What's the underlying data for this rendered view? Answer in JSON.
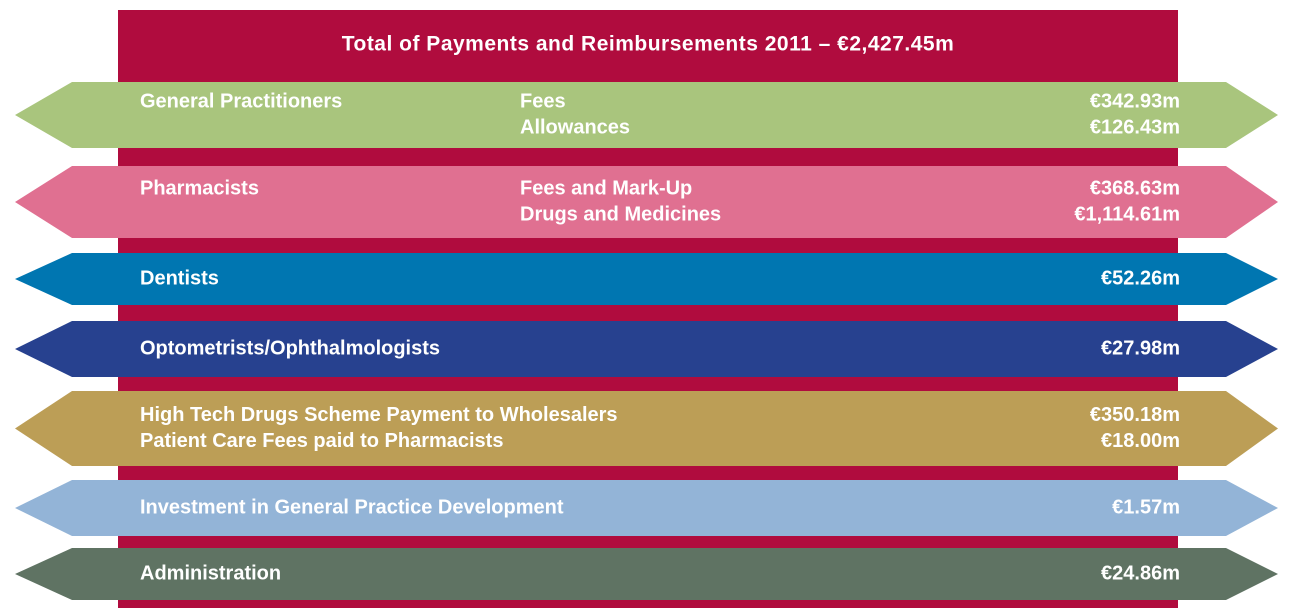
{
  "title": "Total of Payments and Reimbursements 2011 – €2,427.45m",
  "bands": [
    {
      "name": "General Practitioners",
      "color": "#a9c57d",
      "rows": [
        {
          "label": "Fees",
          "value": "€342.93m"
        },
        {
          "label": "Allowances",
          "value": "€126.43m"
        }
      ]
    },
    {
      "name": "Pharmacists",
      "color": "#e07091",
      "rows": [
        {
          "label": "Fees and Mark-Up",
          "value": "€368.63m"
        },
        {
          "label": "Drugs and Medicines",
          "value": "€1,114.61m"
        }
      ]
    },
    {
      "name": "Dentists",
      "color": "#0076b1",
      "rows": [
        {
          "value": "€52.26m"
        }
      ]
    },
    {
      "name": "Optometrists/Ophthalmologists",
      "color": "#27418f",
      "rows": [
        {
          "value": "€27.98m"
        }
      ]
    },
    {
      "color": "#bc9e56",
      "rows": [
        {
          "label": "High Tech Drugs Scheme Payment to Wholesalers",
          "value": "€350.18m"
        },
        {
          "label": "Patient Care Fees paid to Pharmacists",
          "value": "€18.00m"
        }
      ]
    },
    {
      "name": "Investment in General Practice Development",
      "color": "#93b4d7",
      "rows": [
        {
          "value": "€1.57m"
        }
      ]
    },
    {
      "name": "Administration",
      "color": "#5f7363",
      "rows": [
        {
          "value": "€24.86m"
        }
      ]
    }
  ]
}
